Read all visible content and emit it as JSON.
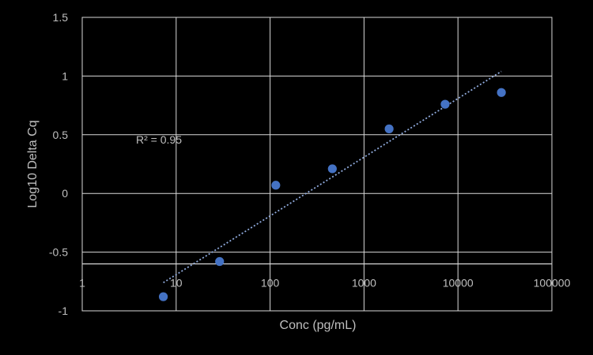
{
  "chart_data": {
    "type": "scatter",
    "xlabel": "Conc (pg/mL)",
    "ylabel": "Log10 Delta Cq",
    "x_scale": "log",
    "xlim": [
      1,
      100000
    ],
    "ylim": [
      -1,
      1.5
    ],
    "y_axis_crossing": -0.6,
    "x_tick_labels": [
      "1",
      "10",
      "100",
      "1000",
      "10000",
      "100000"
    ],
    "x_tick_values": [
      1,
      10,
      100,
      1000,
      10000,
      100000
    ],
    "y_tick_labels": [
      "-1",
      "-0.5",
      "0",
      "0.5",
      "1",
      "1.5"
    ],
    "y_tick_values": [
      -1,
      -0.5,
      0,
      0.5,
      1,
      1.5
    ],
    "grid": true,
    "marker_color": "#4472c4",
    "points": [
      {
        "x": 7.3,
        "y": -0.88
      },
      {
        "x": 29,
        "y": -0.58
      },
      {
        "x": 115,
        "y": 0.07
      },
      {
        "x": 460,
        "y": 0.21
      },
      {
        "x": 1850,
        "y": 0.55
      },
      {
        "x": 7300,
        "y": 0.76
      },
      {
        "x": 29000,
        "y": 0.86
      }
    ],
    "trendline": {
      "style": "dotted",
      "color": "#8faadc",
      "x_start": 7.3,
      "y_start": -0.76,
      "x_end": 29000,
      "y_end": 1.04
    },
    "annotation": {
      "text": "R² = 0.95"
    }
  }
}
